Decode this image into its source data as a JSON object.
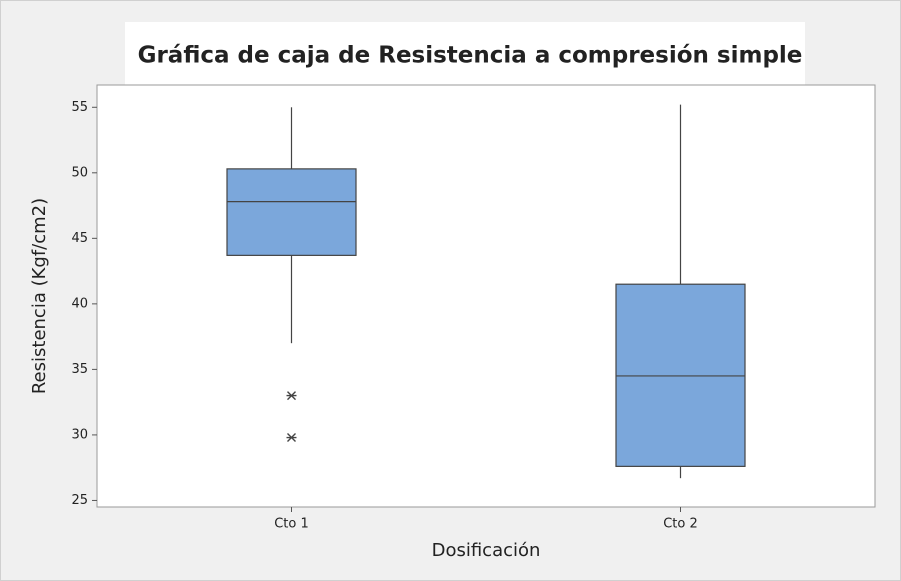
{
  "chart_data": {
    "type": "box",
    "title": "Gráfica de caja de Resistencia a compresión simple",
    "x_label": "Dosificación",
    "y_label": "Resistencia (Kgf/cm2)",
    "categories": [
      "Cto 1",
      "Cto 2"
    ],
    "color": "#7ba7db",
    "boxes": [
      {
        "min": 37.0,
        "q1": 43.7,
        "median": 47.8,
        "q3": 50.3,
        "max": 55.0,
        "outliers": [
          33.0,
          29.8
        ]
      },
      {
        "min": 26.7,
        "q1": 27.6,
        "median": 34.5,
        "q3": 41.5,
        "max": 55.2,
        "outliers": []
      }
    ],
    "ylim": [
      24.5,
      56.7
    ],
    "yticks": [
      25,
      30,
      35,
      40,
      45,
      50,
      55
    ]
  }
}
